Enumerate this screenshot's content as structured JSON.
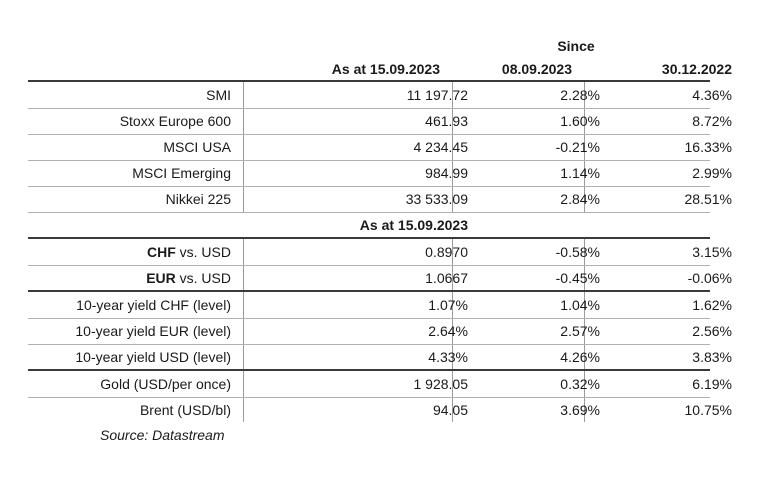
{
  "header": {
    "since_label": "Since",
    "col_current": "As at 15.09.2023",
    "col_since_week": "08.09.2023",
    "col_since_year": "30.12.2022"
  },
  "equities": [
    {
      "name": "SMI",
      "value": "11 197.72",
      "week": "2.28%",
      "ytd": "4.36%"
    },
    {
      "name": "Stoxx Europe 600",
      "value": "461.93",
      "week": "1.60%",
      "ytd": "8.72%"
    },
    {
      "name": "MSCI USA",
      "value": "4 234.45",
      "week": "-0.21%",
      "ytd": "16.33%"
    },
    {
      "name": "MSCI Emerging",
      "value": "984.99",
      "week": "1.14%",
      "ytd": "2.99%"
    },
    {
      "name": "Nikkei 225",
      "value": "33 533.09",
      "week": "2.84%",
      "ytd": "28.51%"
    }
  ],
  "subheader": {
    "label": "As at 15.09.2023"
  },
  "currencies": [
    {
      "bold": "CHF",
      "rest": " vs. USD",
      "value": "0.8970",
      "week": "-0.58%",
      "ytd": "3.15%"
    },
    {
      "bold": "EUR",
      "rest": " vs. USD",
      "value": "1.0667",
      "week": "-0.45%",
      "ytd": "-0.06%"
    }
  ],
  "yields": [
    {
      "name": "10-year yield CHF (level)",
      "value": "1.07%",
      "week": "1.04%",
      "ytd": "1.62%"
    },
    {
      "name": "10-year yield EUR (level)",
      "value": "2.64%",
      "week": "2.57%",
      "ytd": "2.56%"
    },
    {
      "name": "10-year yield USD (level)",
      "value": "4.33%",
      "week": "4.26%",
      "ytd": "3.83%"
    }
  ],
  "commodities": [
    {
      "name": "Gold (USD/per once)",
      "value": "1 928.05",
      "week": "0.32%",
      "ytd": "6.19%"
    },
    {
      "name": "Brent (USD/bl)",
      "value": "94.05",
      "week": "3.69%",
      "ytd": "10.75%"
    }
  ],
  "footer": {
    "source": "Source: Datastream"
  }
}
